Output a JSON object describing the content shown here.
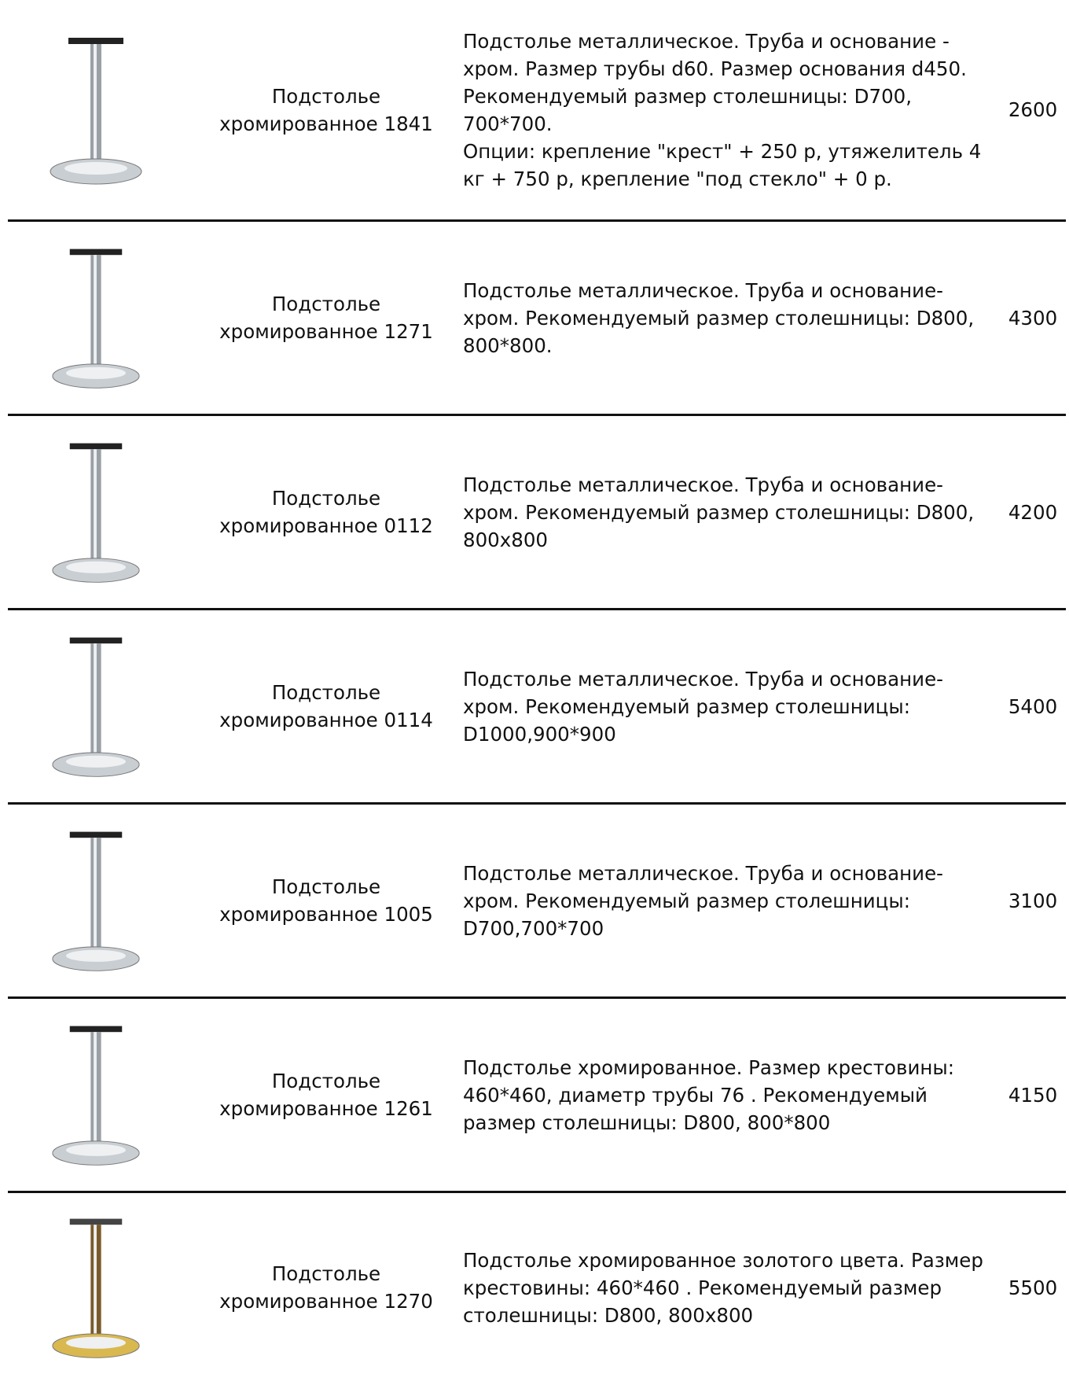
{
  "rows": [
    {
      "name": "Подстолье хромированное 1841",
      "description": [
        "Подстолье металлическое. Труба и основание - хром. Размер трубы d60. Размер основания d450. Рекомендуемый размер столешницы: D700, 700*700.",
        "Опции: крепление \"крест\" + 250 р, утяжелитель 4 кг + 750 р, крепление \"под стекло\" + 0 р."
      ],
      "price": "2600"
    },
    {
      "name": "Подстолье хромированное 1271",
      "description": [
        "Подстолье металлическое. Труба и основание-хром. Рекомендуемый размер столешницы: D800, 800*800."
      ],
      "price": "4300"
    },
    {
      "name": "Подстолье хромированное 0112",
      "description": [
        "Подстолье металлическое. Труба и основание-хром. Рекомендуемый размер столешницы: D800, 800x800"
      ],
      "price": "4200"
    },
    {
      "name": "Подстолье хромированное 0114",
      "description": [
        "Подстолье металлическое. Труба и основание-хром. Рекомендуемый размер столешницы: D1000,900*900"
      ],
      "price": "5400"
    },
    {
      "name": "Подстолье хромированное 1005",
      "description": [
        "Подстолье металлическое. Труба и основание-хром. Рекомендуемый размер столешницы: D700,700*700"
      ],
      "price": "3100"
    },
    {
      "name": "Подстолье хромированное 1261",
      "description": [
        "Подстолье хромированное. Размер крестовины: 460*460, диаметр трубы 76 . Рекомендуемый размер столешницы: D800, 800*800"
      ],
      "price": "4150"
    },
    {
      "name": "Подстолье хромированное 1270",
      "description": [
        "Подстолье хромированное золотого цвета. Размер крестовины: 460*460 . Рекомендуемый размер столешницы: D800, 800x800"
      ],
      "price": "5500"
    }
  ]
}
